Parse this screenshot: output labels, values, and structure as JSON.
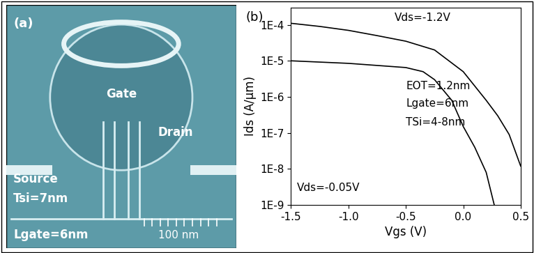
{
  "image_panel": {
    "panel_label": "(a)",
    "texts": [
      "Gate",
      "Drain",
      "Source",
      "Tsi=7nm",
      "Lgate=6nm"
    ],
    "scale_bar": "100 nm"
  },
  "chart_data": {
    "type": "line",
    "panel_label": "(b)",
    "x_label": "Vgs (V)",
    "y_label": "Ids (A/μm)",
    "log": "y",
    "xlim": [
      -1.5,
      0.5
    ],
    "xticks": [
      -1.5,
      -1.0,
      -0.5,
      0.0,
      0.5
    ],
    "ylim": [
      1e-09,
      0.0003
    ],
    "yticks": [
      {
        "value": 1e-09,
        "label": "1E-9"
      },
      {
        "value": 1e-08,
        "label": "1E-8"
      },
      {
        "value": 1e-07,
        "label": "1E-7"
      },
      {
        "value": 1e-06,
        "label": "1E-6"
      },
      {
        "value": 1e-05,
        "label": "1E-5"
      },
      {
        "value": 0.0001,
        "label": "1E-4"
      }
    ],
    "annotations": [
      "Vds=-1.2V",
      "EOT=1.2nm",
      "Lgate=6nm",
      "TSi=4-8nm",
      "Vds=-0.05V"
    ],
    "series": [
      {
        "name": "Vds=-1.2V",
        "color": "#000000",
        "x": [
          -1.5,
          -1.25,
          -1.0,
          -0.75,
          -0.5,
          -0.25,
          0.0,
          0.1,
          0.2,
          0.3,
          0.4,
          0.5
        ],
        "values": [
          0.00011,
          9e-05,
          7e-05,
          5e-05,
          3.5e-05,
          2e-05,
          5e-06,
          2e-06,
          8e-07,
          3e-07,
          9e-08,
          1.2e-08
        ]
      },
      {
        "name": "Vds=-0.05V",
        "color": "#000000",
        "x": [
          -1.5,
          -1.0,
          -0.5,
          -0.35,
          -0.25,
          -0.1,
          0.0,
          0.1,
          0.2,
          0.27
        ],
        "values": [
          1e-05,
          8.5e-06,
          6.5e-06,
          5e-06,
          3e-06,
          8e-07,
          1.5e-07,
          4e-08,
          8e-09,
          1e-09
        ]
      }
    ]
  }
}
